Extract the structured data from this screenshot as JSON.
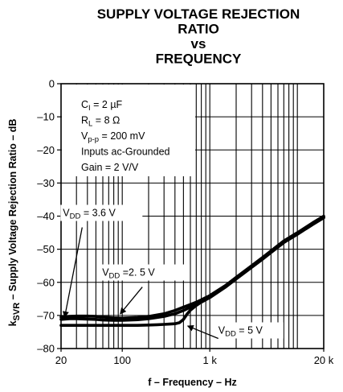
{
  "chart_data": {
    "type": "line",
    "title_lines": [
      "SUPPLY VOLTAGE REJECTION",
      "RATIO",
      "vs",
      "FREQUENCY"
    ],
    "xlabel": "f – Frequency – Hz",
    "ylabel": {
      "prefix": "k",
      "sub": "SVR",
      "suffix": " – Supply Voltage Rejection Ratio – dB"
    },
    "xscale": "log",
    "xlim": [
      20,
      20000
    ],
    "ylim": [
      -80,
      0
    ],
    "grid": true,
    "x_ticks": [
      {
        "value": 20,
        "label": "20"
      },
      {
        "value": 100,
        "label": "100"
      },
      {
        "value": 1000,
        "label": "1 k"
      },
      {
        "value": 20000,
        "label": "20 k"
      }
    ],
    "y_ticks": [
      {
        "value": 0,
        "label": "0"
      },
      {
        "value": -10,
        "label": "–10"
      },
      {
        "value": -20,
        "label": "–20"
      },
      {
        "value": -30,
        "label": "–30"
      },
      {
        "value": -40,
        "label": "–40"
      },
      {
        "value": -50,
        "label": "–50"
      },
      {
        "value": -60,
        "label": "–60"
      },
      {
        "value": -70,
        "label": "–70"
      },
      {
        "value": -80,
        "label": "–80"
      }
    ],
    "conditions": [
      {
        "base": "C",
        "sub": "I",
        "rest": " = 2 µF"
      },
      {
        "base": "R",
        "sub": "L",
        "rest": " = 8 Ω"
      },
      {
        "base": "V",
        "sub": "p-p",
        "rest": " = 200 mV"
      },
      {
        "base": "Inputs ac-Grounded",
        "sub": "",
        "rest": ""
      },
      {
        "base": "Gain = 2 V/V",
        "sub": "",
        "rest": ""
      }
    ],
    "series": [
      {
        "name": "VDD = 3.6 V",
        "label": {
          "base": "V",
          "sub": "DD",
          "rest": " = 3.6 V"
        },
        "label_anchor": {
          "x": 21,
          "y": -40
        },
        "arrow_to": {
          "x": 22,
          "y": -70.5
        },
        "x": [
          20,
          25,
          30,
          40,
          50,
          60,
          80,
          100,
          150,
          200,
          300,
          400,
          500,
          600,
          700,
          800,
          900,
          1000,
          1500,
          2000,
          3000,
          4000,
          5000,
          7000,
          10000,
          15000,
          20000
        ],
        "y": [
          -70.5,
          -70.3,
          -70.2,
          -70.2,
          -70.3,
          -70.5,
          -70.7,
          -70.8,
          -70.6,
          -70.3,
          -69.5,
          -68.5,
          -67.5,
          -66.7,
          -66,
          -65.3,
          -64.6,
          -64,
          -61,
          -58.5,
          -55,
          -52.5,
          -50.5,
          -47.5,
          -45,
          -42,
          -40
        ]
      },
      {
        "name": "VDD = 2.5 V",
        "label": {
          "base": "V",
          "sub": "DD",
          "rest": " =2. 5 V"
        },
        "label_anchor": {
          "x": 59,
          "y": -58
        },
        "arrow_to": {
          "x": 95,
          "y": -69.5
        },
        "x": [
          20,
          25,
          30,
          40,
          50,
          60,
          80,
          100,
          150,
          200,
          300,
          400,
          500,
          600,
          700,
          800,
          900,
          1000,
          1500,
          2000,
          3000,
          4000,
          5000,
          7000,
          10000,
          15000,
          20000
        ],
        "y": [
          -71.2,
          -71,
          -71,
          -71.1,
          -71.2,
          -71.4,
          -71.5,
          -71.5,
          -71.3,
          -71,
          -70.3,
          -69.5,
          -68.5,
          -67.5,
          -66.6,
          -65.8,
          -65,
          -64.3,
          -61.3,
          -58.8,
          -55.3,
          -52.8,
          -50.8,
          -47.8,
          -45.3,
          -42.3,
          -40.3
        ]
      },
      {
        "name": "VDD = 5 V",
        "label": {
          "base": "V",
          "sub": "DD",
          "rest": " = 5 V"
        },
        "label_anchor": {
          "x": 1250,
          "y": -75.5
        },
        "arrow_to": {
          "x": 560,
          "y": -73.2
        },
        "x": [
          20,
          25,
          30,
          40,
          50,
          60,
          80,
          100,
          150,
          200,
          250,
          300,
          350,
          400,
          450,
          500,
          550,
          600,
          700,
          800,
          1000,
          1500,
          2000,
          3000,
          4000,
          5000,
          7000,
          10000,
          15000,
          20000
        ],
        "y": [
          -73,
          -73,
          -73,
          -73,
          -73,
          -73,
          -73,
          -73,
          -73,
          -72.9,
          -72.8,
          -72.7,
          -72.6,
          -72.5,
          -72.2,
          -71.2,
          -69.6,
          -68.4,
          -67,
          -66,
          -64.6,
          -61.5,
          -59,
          -55.5,
          -53,
          -51,
          -48,
          -45.5,
          -42.5,
          -40.5
        ]
      }
    ]
  }
}
